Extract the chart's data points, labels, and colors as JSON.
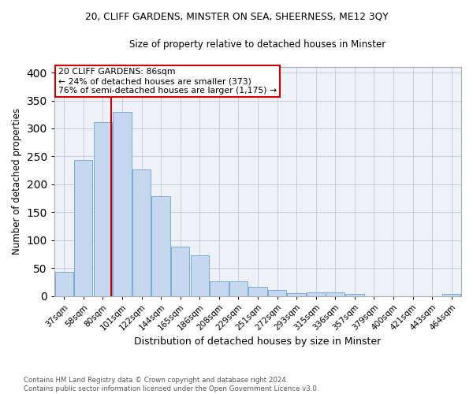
{
  "title1": "20, CLIFF GARDENS, MINSTER ON SEA, SHEERNESS, ME12 3QY",
  "title2": "Size of property relative to detached houses in Minster",
  "xlabel": "Distribution of detached houses by size in Minster",
  "ylabel": "Number of detached properties",
  "categories": [
    "37sqm",
    "58sqm",
    "80sqm",
    "101sqm",
    "122sqm",
    "144sqm",
    "165sqm",
    "186sqm",
    "208sqm",
    "229sqm",
    "251sqm",
    "272sqm",
    "293sqm",
    "315sqm",
    "336sqm",
    "357sqm",
    "379sqm",
    "400sqm",
    "421sqm",
    "443sqm",
    "464sqm"
  ],
  "values": [
    43,
    243,
    311,
    330,
    226,
    179,
    88,
    73,
    26,
    26,
    16,
    10,
    5,
    6,
    6,
    3,
    0,
    0,
    0,
    0,
    3
  ],
  "bar_color": "#c5d8f0",
  "bar_edge_color": "#7aadd4",
  "grid_color": "#c0c8d8",
  "background_color": "#eef2f8",
  "vline_x_index": 2.425,
  "vline_color": "#cc0000",
  "annotation_line1": "20 CLIFF GARDENS: 86sqm",
  "annotation_line2": "← 24% of detached houses are smaller (373)",
  "annotation_line3": "76% of semi-detached houses are larger (1,175) →",
  "annotation_box_color": "#ffffff",
  "annotation_box_edge": "#cc0000",
  "ylim": [
    0,
    410
  ],
  "yticks": [
    0,
    50,
    100,
    150,
    200,
    250,
    300,
    350,
    400
  ],
  "footnote": "Contains HM Land Registry data © Crown copyright and database right 2024.\nContains public sector information licensed under the Open Government Licence v3.0."
}
